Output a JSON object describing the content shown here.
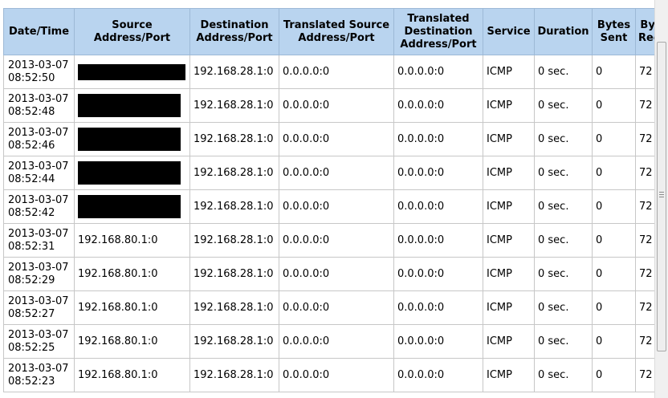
{
  "table": {
    "headers": [
      "Date/Time",
      "Source Address/Port",
      "Destination Address/Port",
      "Translated Source Address/Port",
      "Translated Destination Address/Port",
      "Service",
      "Duration",
      "Bytes Sent",
      "Bytes Received"
    ],
    "rows": [
      {
        "datetime": "2013-03-07 08:52:50",
        "source": "",
        "source_redacted": true,
        "destination": "192.168.28.1:0",
        "trans_source": "0.0.0.0:0",
        "trans_destination": "0.0.0.0:0",
        "service": "ICMP",
        "duration": "0 sec.",
        "bytes_sent": "0",
        "bytes_received": "72"
      },
      {
        "datetime": "2013-03-07 08:52:48",
        "source": "",
        "source_redacted": true,
        "destination": "192.168.28.1:0",
        "trans_source": "0.0.0.0:0",
        "trans_destination": "0.0.0.0:0",
        "service": "ICMP",
        "duration": "0 sec.",
        "bytes_sent": "0",
        "bytes_received": "72"
      },
      {
        "datetime": "2013-03-07 08:52:46",
        "source": "",
        "source_redacted": true,
        "destination": "192.168.28.1:0",
        "trans_source": "0.0.0.0:0",
        "trans_destination": "0.0.0.0:0",
        "service": "ICMP",
        "duration": "0 sec.",
        "bytes_sent": "0",
        "bytes_received": "72"
      },
      {
        "datetime": "2013-03-07 08:52:44",
        "source": "",
        "source_redacted": true,
        "destination": "192.168.28.1:0",
        "trans_source": "0.0.0.0:0",
        "trans_destination": "0.0.0.0:0",
        "service": "ICMP",
        "duration": "0 sec.",
        "bytes_sent": "0",
        "bytes_received": "72"
      },
      {
        "datetime": "2013-03-07 08:52:42",
        "source": "",
        "source_redacted": true,
        "destination": "192.168.28.1:0",
        "trans_source": "0.0.0.0:0",
        "trans_destination": "0.0.0.0:0",
        "service": "ICMP",
        "duration": "0 sec.",
        "bytes_sent": "0",
        "bytes_received": "72"
      },
      {
        "datetime": "2013-03-07 08:52:31",
        "source": "192.168.80.1:0",
        "source_redacted": false,
        "destination": "192.168.28.1:0",
        "trans_source": "0.0.0.0:0",
        "trans_destination": "0.0.0.0:0",
        "service": "ICMP",
        "duration": "0 sec.",
        "bytes_sent": "0",
        "bytes_received": "72"
      },
      {
        "datetime": "2013-03-07 08:52:29",
        "source": "192.168.80.1:0",
        "source_redacted": false,
        "destination": "192.168.28.1:0",
        "trans_source": "0.0.0.0:0",
        "trans_destination": "0.0.0.0:0",
        "service": "ICMP",
        "duration": "0 sec.",
        "bytes_sent": "0",
        "bytes_received": "72"
      },
      {
        "datetime": "2013-03-07 08:52:27",
        "source": "192.168.80.1:0",
        "source_redacted": false,
        "destination": "192.168.28.1:0",
        "trans_source": "0.0.0.0:0",
        "trans_destination": "0.0.0.0:0",
        "service": "ICMP",
        "duration": "0 sec.",
        "bytes_sent": "0",
        "bytes_received": "72"
      },
      {
        "datetime": "2013-03-07 08:52:25",
        "source": "192.168.80.1:0",
        "source_redacted": false,
        "destination": "192.168.28.1:0",
        "trans_source": "0.0.0.0:0",
        "trans_destination": "0.0.0.0:0",
        "service": "ICMP",
        "duration": "0 sec.",
        "bytes_sent": "0",
        "bytes_received": "72"
      },
      {
        "datetime": "2013-03-07 08:52:23",
        "source": "192.168.80.1:0",
        "source_redacted": false,
        "destination": "192.168.28.1:0",
        "trans_source": "0.0.0.0:0",
        "trans_destination": "0.0.0.0:0",
        "service": "ICMP",
        "duration": "0 sec.",
        "bytes_sent": "0",
        "bytes_received": "72"
      }
    ]
  },
  "colors": {
    "header_bg": "#b9d4ef",
    "redaction": "#000000"
  }
}
